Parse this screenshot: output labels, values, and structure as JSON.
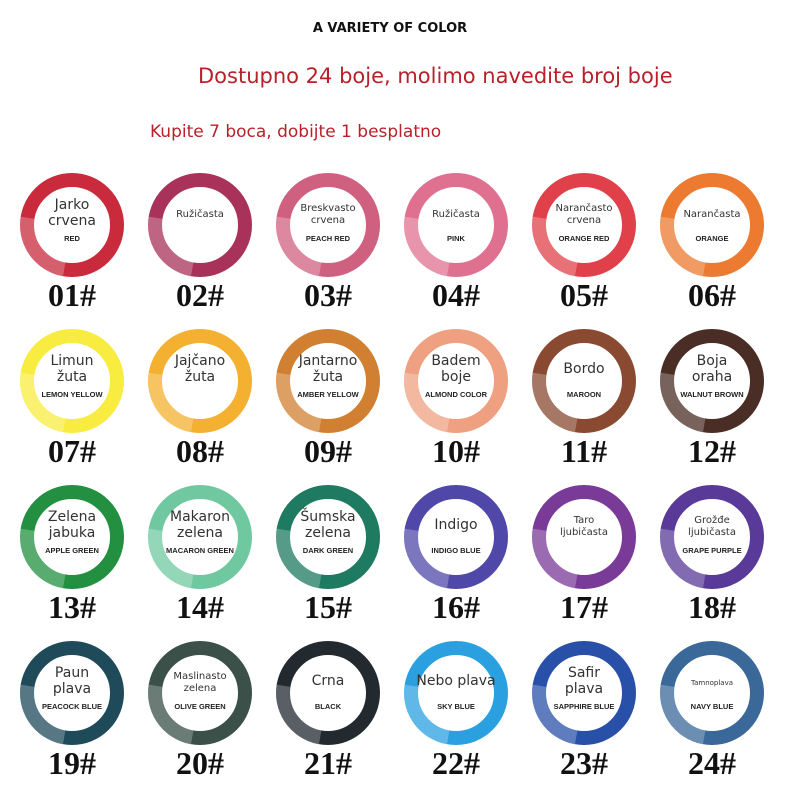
{
  "header": {
    "title": "A VARIETY OF COLOR",
    "subtitle": "Dostupno 24 boje, molimo navedite broj boje",
    "offer": "Kupite 7 boca, dobijte 1 besplatno"
  },
  "items": [
    {
      "label": [
        "Jarko",
        "crvena"
      ],
      "english": "RED",
      "number": "01#",
      "color": "#c92a3c"
    },
    {
      "label": [
        "Ružičasta"
      ],
      "number": "02#",
      "color": "#a8325a"
    },
    {
      "label": [
        "Breskvasto",
        "crvena"
      ],
      "english": "PEACH RED",
      "number": "03#",
      "color": "#d06080"
    },
    {
      "label": [
        "Ružičasta"
      ],
      "english": "PINK",
      "number": "04#",
      "color": "#e07090"
    },
    {
      "label": [
        "Narančasto",
        "crvena"
      ],
      "english": "ORANGE RED",
      "number": "05#",
      "color": "#e0404a"
    },
    {
      "label": [
        "Narančasta"
      ],
      "english": "ORANGE",
      "number": "06#",
      "color": "#ec7a30"
    },
    {
      "label": [
        "Limun",
        "žuta"
      ],
      "english": "LEMON YELLOW",
      "number": "07#",
      "color": "#f8ec40"
    },
    {
      "label": [
        "Jajčano",
        "žuta"
      ],
      "number": "08#",
      "color": "#f4b030"
    },
    {
      "label": [
        "Jantarno",
        "žuta"
      ],
      "english": "AMBER YELLOW",
      "number": "09#",
      "color": "#d08030"
    },
    {
      "label": [
        "Badem",
        "boje"
      ],
      "english": "ALMOND COLOR",
      "number": "10#",
      "color": "#eea080"
    },
    {
      "label": [
        "Bordo"
      ],
      "english": "MAROON",
      "number": "11#",
      "color": "#8a4a32"
    },
    {
      "label": [
        "Boja",
        "oraha"
      ],
      "english": "WALNUT BROWN",
      "number": "12#",
      "color": "#4a2e26"
    },
    {
      "label": [
        "Zelena",
        "jabuka"
      ],
      "english": "APPLE GREEN",
      "number": "13#",
      "color": "#229040"
    },
    {
      "label": [
        "Makaron",
        "zelena"
      ],
      "english": "MACARON GREEN",
      "number": "14#",
      "color": "#70c8a0"
    },
    {
      "label": [
        "Šumska",
        "zelena"
      ],
      "english": "DARK GREEN",
      "number": "15#",
      "color": "#1e7a60"
    },
    {
      "label": [
        "Indigo"
      ],
      "english": "INDIGO BLUE",
      "number": "16#",
      "color": "#5048a8"
    },
    {
      "label": [
        "Taro",
        "ljubičasta"
      ],
      "number": "17#",
      "color": "#7a3a98"
    },
    {
      "label": [
        "Grožđe",
        "ljubičasta"
      ],
      "english": "GRAPE PURPLE",
      "number": "18#",
      "color": "#5a3a98"
    },
    {
      "label": [
        "Paun",
        "plava"
      ],
      "english": "PEACOCK BLUE",
      "number": "19#",
      "color": "#1e4a5a"
    },
    {
      "label": [
        "Maslinasto",
        "zelena"
      ],
      "english": "OLIVE GREEN",
      "number": "20#",
      "color": "#3a5048"
    },
    {
      "label": [
        "Crna"
      ],
      "english": "BLACK",
      "number": "21#",
      "color": "#222a30"
    },
    {
      "label": [
        "Nebo plava"
      ],
      "english": "SKY BLUE",
      "number": "22#",
      "color": "#2aa0e0"
    },
    {
      "label": [
        "Safir",
        "plava"
      ],
      "english": "SAPPHIRE BLUE",
      "number": "23#",
      "color": "#2850a8"
    },
    {
      "label": [
        "Tamnoplava"
      ],
      "english": "NAVY BLUE",
      "number": "24#",
      "color": "#3a6898"
    }
  ]
}
